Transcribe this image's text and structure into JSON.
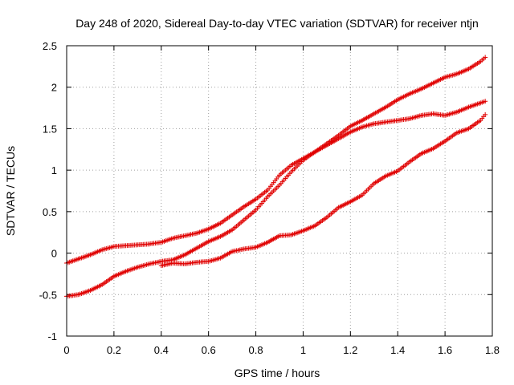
{
  "chart_data": {
    "type": "scatter",
    "title": "Day 248 of 2020, Sidereal Day-to-day VTEC variation (SDTVAR) for receiver ntjn",
    "xlabel": "GPS time / hours",
    "ylabel": "SDTVAR / TECUs",
    "xlim": [
      0,
      1.8
    ],
    "ylim": [
      -1,
      2.5
    ],
    "xticks": [
      "0",
      "0.2",
      "0.4",
      "0.6",
      "0.8",
      "1",
      "1.2",
      "1.4",
      "1.6",
      "1.8"
    ],
    "yticks": [
      "-1",
      "-0.5",
      "0",
      "0.5",
      "1",
      "1.5",
      "2",
      "2.5"
    ],
    "grid": true,
    "marker": "plus",
    "color": "#e00000",
    "series": [
      {
        "name": "series-top",
        "x": [
          0.0,
          0.05,
          0.1,
          0.15,
          0.2,
          0.25,
          0.3,
          0.35,
          0.4,
          0.45,
          0.5,
          0.55,
          0.6,
          0.65,
          0.7,
          0.75,
          0.8,
          0.85,
          0.9,
          0.95,
          1.0,
          1.05,
          1.1,
          1.15,
          1.2,
          1.25,
          1.3,
          1.35,
          1.4,
          1.45,
          1.5,
          1.55,
          1.6,
          1.65,
          1.7,
          1.75,
          1.77
        ],
        "y": [
          -0.12,
          -0.07,
          -0.02,
          0.04,
          0.08,
          0.09,
          0.1,
          0.11,
          0.13,
          0.18,
          0.21,
          0.24,
          0.29,
          0.36,
          0.46,
          0.56,
          0.65,
          0.76,
          0.94,
          1.06,
          1.14,
          1.22,
          1.32,
          1.42,
          1.53,
          1.6,
          1.68,
          1.76,
          1.85,
          1.92,
          1.98,
          2.05,
          2.12,
          2.16,
          2.22,
          2.31,
          2.36
        ]
      },
      {
        "name": "series-middle",
        "x": [
          0.0,
          0.05,
          0.1,
          0.15,
          0.2,
          0.25,
          0.3,
          0.35,
          0.4,
          0.45,
          0.5,
          0.55,
          0.6,
          0.65,
          0.7,
          0.75,
          0.8,
          0.85,
          0.9,
          0.95,
          1.0,
          1.05,
          1.1,
          1.15,
          1.2,
          1.25,
          1.3,
          1.35,
          1.4,
          1.45,
          1.5,
          1.55,
          1.6,
          1.65,
          1.7,
          1.75,
          1.77
        ],
        "y": [
          -0.52,
          -0.5,
          -0.45,
          -0.38,
          -0.28,
          -0.22,
          -0.17,
          -0.13,
          -0.1,
          -0.08,
          -0.02,
          0.06,
          0.14,
          0.2,
          0.28,
          0.4,
          0.52,
          0.68,
          0.82,
          0.98,
          1.12,
          1.22,
          1.3,
          1.38,
          1.46,
          1.52,
          1.56,
          1.58,
          1.6,
          1.62,
          1.66,
          1.68,
          1.66,
          1.7,
          1.76,
          1.81,
          1.83
        ]
      },
      {
        "name": "series-bottom",
        "x": [
          0.4,
          0.45,
          0.5,
          0.55,
          0.6,
          0.65,
          0.7,
          0.75,
          0.8,
          0.85,
          0.9,
          0.95,
          1.0,
          1.05,
          1.1,
          1.15,
          1.2,
          1.25,
          1.3,
          1.35,
          1.4,
          1.45,
          1.5,
          1.55,
          1.6,
          1.65,
          1.7,
          1.75,
          1.77
        ],
        "y": [
          -0.15,
          -0.12,
          -0.13,
          -0.11,
          -0.1,
          -0.06,
          0.02,
          0.05,
          0.07,
          0.13,
          0.21,
          0.22,
          0.27,
          0.33,
          0.43,
          0.55,
          0.62,
          0.7,
          0.84,
          0.93,
          0.99,
          1.1,
          1.2,
          1.26,
          1.35,
          1.45,
          1.5,
          1.6,
          1.67
        ]
      }
    ]
  }
}
